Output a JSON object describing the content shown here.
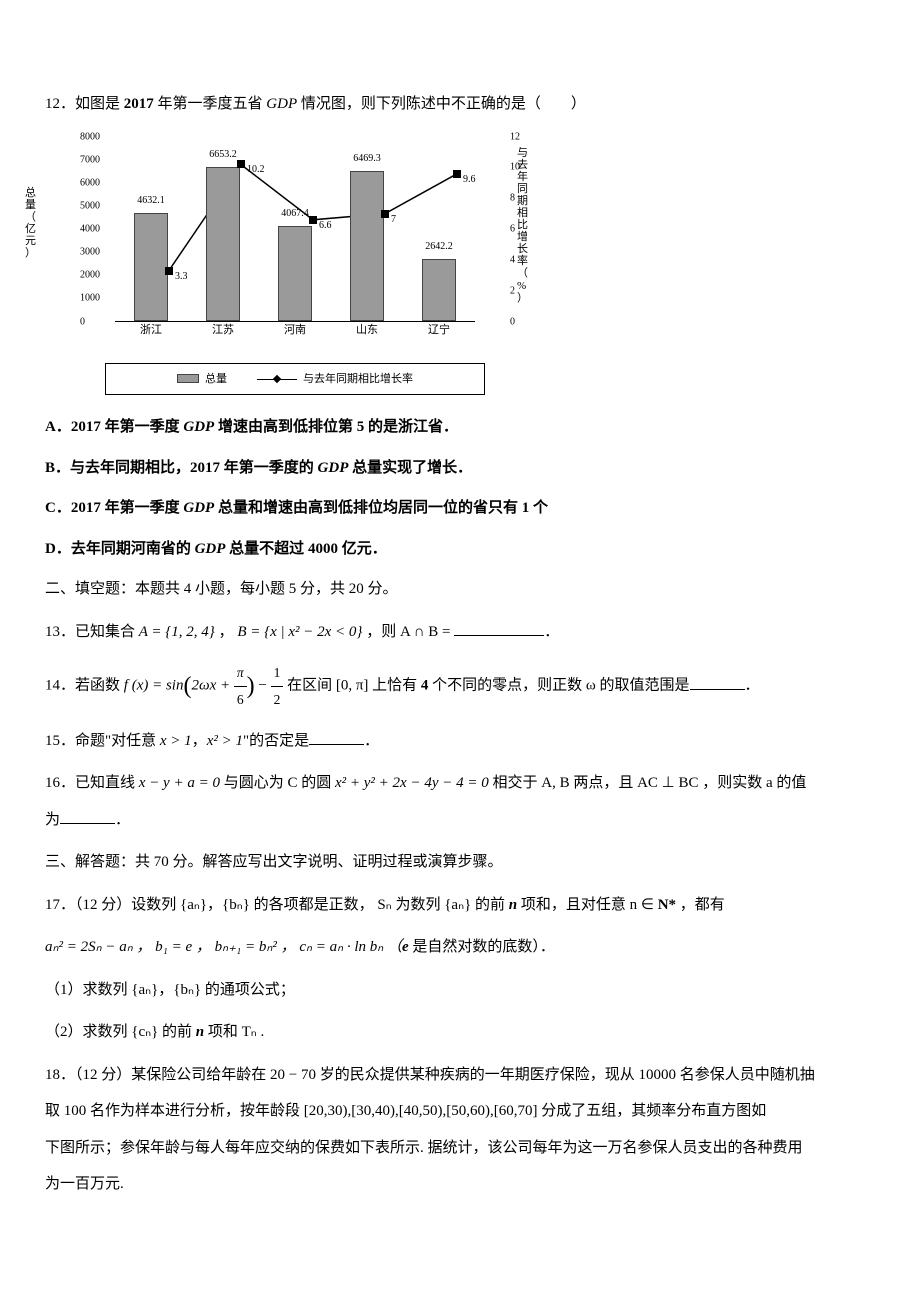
{
  "q12": {
    "prefix": "12．如图是",
    "year": " 2017 ",
    "mid1": "年第一季度五省 ",
    "gdp": "GDP",
    "mid2": " 情况图，则下列陈述中不正确的是（　　）"
  },
  "chart": {
    "type": "bar+line",
    "background_color": "#ffffff",
    "bar_color": "#9a9a9a",
    "bar_border": "#444444",
    "line_color": "#000000",
    "marker_color": "#000000",
    "categories": [
      "浙江",
      "江苏",
      "河南",
      "山东",
      "辽宁"
    ],
    "y1_label_chars": [
      "总",
      "量",
      "（",
      "亿",
      "元",
      "）"
    ],
    "y2_label_chars": [
      "与",
      "去",
      "年",
      "同",
      "期",
      "相",
      "比",
      "增",
      "长",
      "率",
      "（",
      "%",
      "）"
    ],
    "y1_ticks": [
      "0",
      "1000",
      "2000",
      "3000",
      "4000",
      "5000",
      "6000",
      "7000",
      "8000"
    ],
    "y1_max": 8000,
    "y2_ticks": [
      "0",
      "2",
      "4",
      "6",
      "8",
      "10",
      "12"
    ],
    "y2_max": 12,
    "bars": [
      4632.1,
      6653.2,
      4067.4,
      6469.3,
      2642.2
    ],
    "bar_labels": [
      "4632.1",
      "6653.2",
      "4067.4",
      "6469.3",
      "2642.2"
    ],
    "line_values": [
      3.3,
      10.2,
      6.6,
      7,
      9.6
    ],
    "line_labels": [
      "3.3",
      "10.2",
      "6.6",
      "7",
      "9.6"
    ],
    "legend": {
      "bar": "总量",
      "line": "与去年同期相比增长率"
    }
  },
  "q12_options": {
    "A_pre": "A．",
    "A_b": "2017",
    "A_mid": " 年第一季度 ",
    "A_g": "GDP",
    "A_post": " 增速由高到低排位第",
    "A_b2": " 5 ",
    "A_end": "的是浙江省．",
    "B_pre": "B．与去年同期相比，",
    "B_b": "2017",
    "B_mid": " 年第一季度的 ",
    "B_g": "GDP",
    "B_end": " 总量实现了增长．",
    "C_pre": "C．",
    "C_b": "2017",
    "C_mid": " 年第一季度 ",
    "C_g": "GDP",
    "C_post": " 总量和增速由高到低排位均居同一位的省只有",
    "C_b2": " 1 ",
    "C_end": "个",
    "D_pre": "D．去年同期河南省的 ",
    "D_g": "GDP",
    "D_post": " 总量不超过",
    "D_b": " 4000 ",
    "D_end": "亿元．"
  },
  "section2": "二、填空题：本题共 4 小题，每小题 5 分，共 20 分。",
  "q13": {
    "num": "13．",
    "t1": "已知集合",
    "A": " A = {1, 2, 4} ",
    "t2": "，",
    "B": " B = {x | x² − 2x < 0} ",
    "t3": "，则 A ∩ B = "
  },
  "q14": {
    "num": "14．",
    "t1": "若函数 ",
    "fx": "f (x) = sin",
    "arg1": "2ωx + ",
    "arg2": " − ",
    "t2": " 在区间 [0, π] 上恰有",
    "b": " 4 ",
    "t3": "个不同的零点，则正数 ω 的取值范围是",
    "pi": "π",
    "six": "6",
    "one": "1",
    "two": "2"
  },
  "q15": {
    "num": "15．",
    "t1": "命题\"对任意 ",
    "e1": "x > 1",
    "t2": "，",
    "e2": "x² > 1",
    "t3": "\"的否定是"
  },
  "q16": {
    "num": "16．",
    "t1": "已知直线 ",
    "e1": "x − y + a = 0",
    "t2": " 与圆心为 C 的圆 ",
    "e2": "x² + y² + 2x − 4y − 4 = 0",
    "t3": " 相交于 A, B 两点，且 AC ⊥ BC ，则实数 a 的值",
    "t4": "为"
  },
  "section3": "三、解答题：共 70 分。解答应写出文字说明、证明过程或演算步骤。",
  "q17": {
    "head": "17．（12 分）设数列 {aₙ}，{bₙ} 的各项都是正数， Sₙ 为数列 {aₙ} 的前 ",
    "n": "n",
    "head2": " 项和，且对任意 n ∈ ",
    "Np": "N*",
    "head3": " ，都有",
    "line2": "aₙ² = 2Sₙ − aₙ ， b₁ = e ， bₙ₊₁ = bₙ² ， cₙ = aₙ · ln bₙ （",
    "e": "e",
    "line2b": " 是自然对数的底数）．",
    "p1": "（1）求数列 {aₙ}，{bₙ} 的通项公式；",
    "p2a": "（2）求数列 {cₙ} 的前",
    "p2n": " n ",
    "p2b": "项和 Tₙ ."
  },
  "q18": {
    "line1a": "18．（12 分）某保险公司给年龄在 20 − 70 岁的民众提供某种疾病的一年期医疗保险，现从 10000 名参保人员中随机抽",
    "line2a": "取 100 名作为样本进行分析，按年龄段 [20,30),[30,40),[40,50),[50,60),[60,70] 分成了五组，其频率分布直方图如",
    "line3a": "下图所示；参保年龄与每人每年应交纳的保费如下表所示. 据统计，该公司每年为这一万名参保人员支出的各种费用",
    "line4a": "为一百万元."
  }
}
